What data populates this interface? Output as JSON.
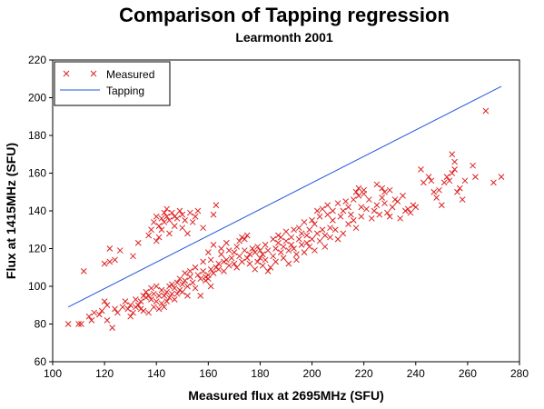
{
  "chart_data": {
    "type": "scatter",
    "title": "Comparison of Tapping regression",
    "subtitle": "Learmonth 2001",
    "xlabel": "Measured flux at 2695MHz (SFU)",
    "ylabel": "Flux at 1415MHz (SFU)",
    "xlim": [
      100,
      280
    ],
    "ylim": [
      60,
      220
    ],
    "x_ticks": [
      "100",
      "120",
      "140",
      "160",
      "180",
      "200",
      "220",
      "240",
      "260",
      "280"
    ],
    "y_ticks": [
      "60",
      "80",
      "100",
      "120",
      "140",
      "160",
      "180",
      "200",
      "220"
    ],
    "grid": false,
    "legend_position": "top-left",
    "colors": {
      "measured": "#dd2222",
      "tapping": "#2255dd"
    },
    "series": [
      {
        "name": "Measured",
        "kind": "scatter",
        "marker": "x",
        "points": [
          [
            106,
            80
          ],
          [
            110,
            80
          ],
          [
            111,
            80
          ],
          [
            112,
            108
          ],
          [
            114,
            84
          ],
          [
            115,
            82
          ],
          [
            116,
            86
          ],
          [
            118,
            85
          ],
          [
            119,
            87
          ],
          [
            120,
            92
          ],
          [
            120,
            112
          ],
          [
            121,
            90
          ],
          [
            121,
            82
          ],
          [
            122,
            113
          ],
          [
            122,
            120
          ],
          [
            123,
            78
          ],
          [
            124,
            88
          ],
          [
            124,
            114
          ],
          [
            125,
            86
          ],
          [
            126,
            119
          ],
          [
            127,
            89
          ],
          [
            128,
            92
          ],
          [
            129,
            88
          ],
          [
            130,
            84
          ],
          [
            130,
            90
          ],
          [
            131,
            86
          ],
          [
            131,
            116
          ],
          [
            132,
            89
          ],
          [
            132,
            93
          ],
          [
            133,
            90
          ],
          [
            133,
            123
          ],
          [
            134,
            92
          ],
          [
            134,
            88
          ],
          [
            135,
            95
          ],
          [
            135,
            87
          ],
          [
            136,
            94
          ],
          [
            136,
            97
          ],
          [
            137,
            95
          ],
          [
            137,
            86
          ],
          [
            137,
            127
          ],
          [
            138,
            99
          ],
          [
            138,
            93
          ],
          [
            138,
            130
          ],
          [
            139,
            96
          ],
          [
            139,
            89
          ],
          [
            139,
            134
          ],
          [
            140,
            92
          ],
          [
            140,
            100
          ],
          [
            140,
            124
          ],
          [
            140,
            137
          ],
          [
            141,
            88
          ],
          [
            141,
            95
          ],
          [
            141,
            126
          ],
          [
            141,
            132
          ],
          [
            142,
            91
          ],
          [
            142,
            98
          ],
          [
            142,
            130
          ],
          [
            142,
            136
          ],
          [
            143,
            89
          ],
          [
            143,
            95
          ],
          [
            143,
            134
          ],
          [
            143,
            139
          ],
          [
            144,
            97
          ],
          [
            144,
            92
          ],
          [
            144,
            141
          ],
          [
            144,
            137
          ],
          [
            145,
            100
          ],
          [
            145,
            94
          ],
          [
            145,
            128
          ],
          [
            145,
            135
          ],
          [
            146,
            96
          ],
          [
            146,
            101
          ],
          [
            146,
            139
          ],
          [
            147,
            99
          ],
          [
            147,
            93
          ],
          [
            147,
            132
          ],
          [
            147,
            137
          ],
          [
            148,
            102
          ],
          [
            148,
            96
          ],
          [
            148,
            136
          ],
          [
            149,
            98
          ],
          [
            149,
            104
          ],
          [
            149,
            140
          ],
          [
            150,
            97
          ],
          [
            150,
            101
          ],
          [
            150,
            131
          ],
          [
            150,
            138
          ],
          [
            151,
            103
          ],
          [
            151,
            107
          ],
          [
            151,
            135
          ],
          [
            152,
            100
          ],
          [
            152,
            95
          ],
          [
            152,
            128
          ],
          [
            153,
            105
          ],
          [
            153,
            108
          ],
          [
            153,
            139
          ],
          [
            154,
            102
          ],
          [
            154,
            134
          ],
          [
            155,
            110
          ],
          [
            155,
            99
          ],
          [
            155,
            137
          ],
          [
            156,
            106
          ],
          [
            156,
            140
          ],
          [
            157,
            104
          ],
          [
            157,
            95
          ],
          [
            158,
            108
          ],
          [
            158,
            113
          ],
          [
            158,
            131
          ],
          [
            159,
            103
          ],
          [
            159,
            105
          ],
          [
            160,
            104
          ],
          [
            160,
            118
          ],
          [
            160,
            106
          ],
          [
            161,
            100
          ],
          [
            161,
            109
          ],
          [
            161,
            114
          ],
          [
            162,
            107
          ],
          [
            162,
            122
          ],
          [
            162,
            138
          ],
          [
            163,
            110
          ],
          [
            163,
            143
          ],
          [
            164,
            109
          ],
          [
            164,
            112
          ],
          [
            165,
            117
          ],
          [
            165,
            120
          ],
          [
            166,
            113
          ],
          [
            166,
            108
          ],
          [
            167,
            123
          ],
          [
            167,
            114
          ],
          [
            168,
            111
          ],
          [
            168,
            119
          ],
          [
            169,
            115
          ],
          [
            170,
            112
          ],
          [
            170,
            118
          ],
          [
            171,
            110
          ],
          [
            171,
            121
          ],
          [
            172,
            124
          ],
          [
            172,
            116
          ],
          [
            173,
            126
          ],
          [
            173,
            113
          ],
          [
            174,
            119
          ],
          [
            174,
            125
          ],
          [
            175,
            115
          ],
          [
            175,
            127
          ],
          [
            176,
            117
          ],
          [
            176,
            112
          ],
          [
            177,
            120
          ],
          [
            178,
            118
          ],
          [
            178,
            109
          ],
          [
            179,
            121
          ],
          [
            179,
            113
          ],
          [
            180,
            115
          ],
          [
            180,
            119
          ],
          [
            181,
            117
          ],
          [
            181,
            111
          ],
          [
            182,
            114
          ],
          [
            182,
            122
          ],
          [
            183,
            108
          ],
          [
            183,
            119
          ],
          [
            184,
            110
          ],
          [
            185,
            116
          ],
          [
            185,
            125
          ],
          [
            186,
            120
          ],
          [
            186,
            113
          ],
          [
            187,
            123
          ],
          [
            187,
            127
          ],
          [
            188,
            118
          ],
          [
            188,
            126
          ],
          [
            189,
            121
          ],
          [
            189,
            115
          ],
          [
            190,
            124
          ],
          [
            190,
            129
          ],
          [
            191,
            119
          ],
          [
            191,
            112
          ],
          [
            192,
            126
          ],
          [
            192,
            122
          ],
          [
            193,
            120
          ],
          [
            193,
            130
          ],
          [
            194,
            114
          ],
          [
            194,
            117
          ],
          [
            195,
            125
          ],
          [
            195,
            131
          ],
          [
            196,
            122
          ],
          [
            196,
            128
          ],
          [
            197,
            118
          ],
          [
            197,
            134
          ],
          [
            198,
            123
          ],
          [
            198,
            127
          ],
          [
            199,
            130
          ],
          [
            199,
            121
          ],
          [
            200,
            135
          ],
          [
            200,
            125
          ],
          [
            201,
            119
          ],
          [
            201,
            133
          ],
          [
            202,
            140
          ],
          [
            202,
            128
          ],
          [
            203,
            124
          ],
          [
            203,
            137
          ],
          [
            204,
            141
          ],
          [
            204,
            130
          ],
          [
            205,
            121
          ],
          [
            205,
            127
          ],
          [
            206,
            138
          ],
          [
            206,
            143
          ],
          [
            207,
            131
          ],
          [
            207,
            126
          ],
          [
            208,
            135
          ],
          [
            208,
            140
          ],
          [
            209,
            130
          ],
          [
            210,
            144
          ],
          [
            210,
            125
          ],
          [
            211,
            137
          ],
          [
            212,
            128
          ],
          [
            212,
            140
          ],
          [
            213,
            145
          ],
          [
            214,
            142
          ],
          [
            214,
            133
          ],
          [
            215,
            138
          ],
          [
            216,
            146
          ],
          [
            216,
            135
          ],
          [
            217,
            150
          ],
          [
            217,
            131
          ],
          [
            218,
            148
          ],
          [
            218,
            152
          ],
          [
            219,
            142
          ],
          [
            219,
            137
          ],
          [
            220,
            149
          ],
          [
            220,
            151
          ],
          [
            221,
            141
          ],
          [
            222,
            146
          ],
          [
            223,
            136
          ],
          [
            224,
            140
          ],
          [
            225,
            154
          ],
          [
            225,
            143
          ],
          [
            226,
            138
          ],
          [
            227,
            147
          ],
          [
            227,
            152
          ],
          [
            228,
            150
          ],
          [
            228,
            144
          ],
          [
            229,
            139
          ],
          [
            230,
            137
          ],
          [
            230,
            151
          ],
          [
            231,
            142
          ],
          [
            232,
            146
          ],
          [
            233,
            145
          ],
          [
            234,
            136
          ],
          [
            235,
            148
          ],
          [
            236,
            140
          ],
          [
            237,
            141
          ],
          [
            238,
            139
          ],
          [
            239,
            143
          ],
          [
            240,
            142
          ],
          [
            242,
            162
          ],
          [
            243,
            155
          ],
          [
            245,
            158
          ],
          [
            246,
            156
          ],
          [
            247,
            150
          ],
          [
            248,
            147
          ],
          [
            249,
            151
          ],
          [
            250,
            143
          ],
          [
            251,
            155
          ],
          [
            252,
            158
          ],
          [
            253,
            156
          ],
          [
            254,
            160
          ],
          [
            254,
            170
          ],
          [
            255,
            162
          ],
          [
            255,
            166
          ],
          [
            256,
            150
          ],
          [
            257,
            152
          ],
          [
            258,
            146
          ],
          [
            259,
            156
          ],
          [
            262,
            164
          ],
          [
            263,
            158
          ],
          [
            267,
            193
          ],
          [
            270,
            155
          ],
          [
            273,
            158
          ]
        ]
      },
      {
        "name": "Tapping",
        "kind": "line",
        "points": [
          [
            106,
            89
          ],
          [
            273,
            206
          ]
        ]
      }
    ]
  }
}
